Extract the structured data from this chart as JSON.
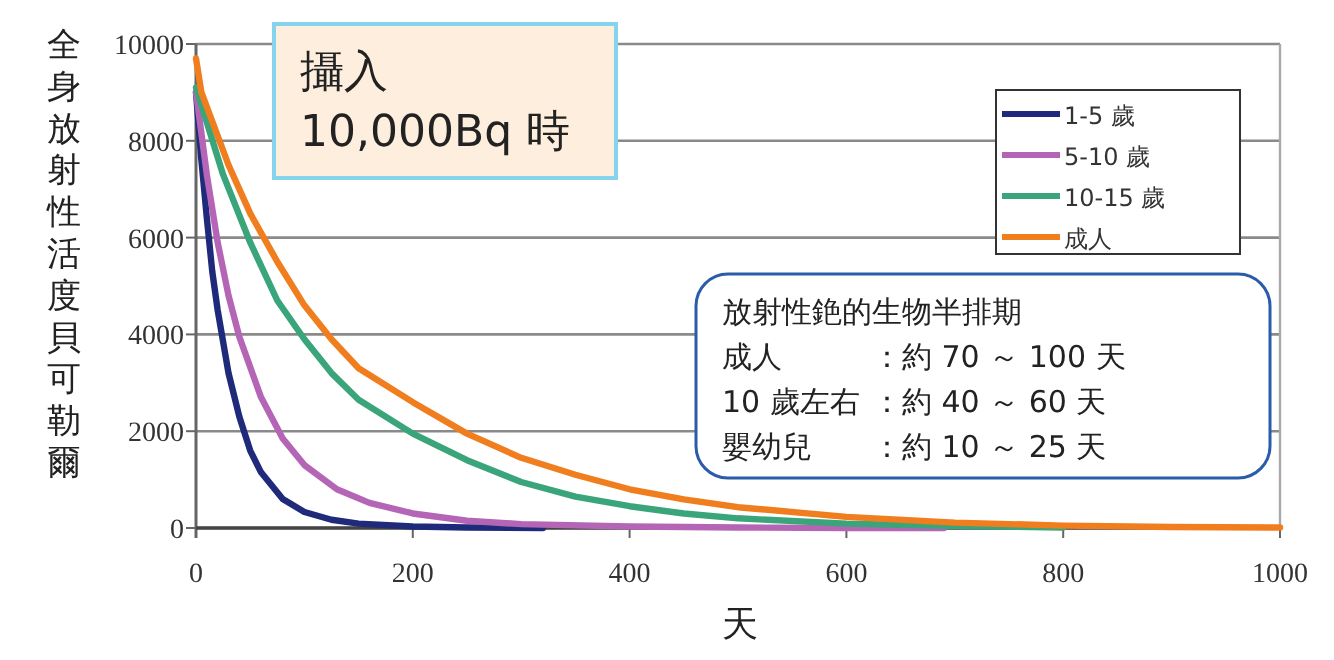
{
  "chart_data": {
    "type": "line",
    "xlabel": "天",
    "ylabel": "全身放射性活度貝可勒爾",
    "xlim": [
      0,
      1000
    ],
    "ylim": [
      0,
      10000
    ],
    "xticks": [
      0,
      200,
      400,
      600,
      800,
      1000
    ],
    "yticks": [
      0,
      2000,
      4000,
      6000,
      8000,
      10000
    ],
    "grid": "y",
    "legend": "top right",
    "marker": "none",
    "line_style": "solid",
    "annotations": [
      "攝入\n10,000Bq 時",
      "放射性銫的生物半排期",
      "成人",
      "：約 70 ～ 100 天",
      "10 歲左右",
      "：約 40 ～ 60 天",
      "嬰幼兒",
      "：約 10 ～ 25 天"
    ],
    "series": [
      {
        "name": "1-5 歲",
        "color": "#1f2a7a",
        "x": [
          0,
          5,
          10,
          15,
          20,
          30,
          40,
          50,
          60,
          80,
          100,
          125,
          150,
          200,
          250,
          320
        ],
        "values": [
          9000,
          7600,
          6400,
          5300,
          4500,
          3200,
          2300,
          1600,
          1150,
          600,
          330,
          170,
          90,
          30,
          10,
          0
        ]
      },
      {
        "name": "5-10 歲",
        "color": "#b565b5",
        "x": [
          0,
          10,
          20,
          30,
          40,
          60,
          80,
          100,
          130,
          160,
          200,
          250,
          300,
          400,
          500,
          600,
          690
        ],
        "values": [
          9000,
          7300,
          5900,
          4800,
          3950,
          2700,
          1850,
          1300,
          800,
          520,
          300,
          150,
          80,
          30,
          10,
          0,
          0
        ]
      },
      {
        "name": "10-15 歲",
        "color": "#3aa57a",
        "x": [
          0,
          25,
          50,
          75,
          100,
          125,
          150,
          200,
          250,
          300,
          350,
          400,
          450,
          500,
          600,
          700,
          800
        ],
        "values": [
          9100,
          7300,
          5900,
          4700,
          3900,
          3200,
          2650,
          1950,
          1400,
          950,
          650,
          450,
          300,
          200,
          90,
          40,
          10
        ]
      },
      {
        "name": "成人",
        "color": "#f07d1e",
        "x": [
          0,
          5,
          15,
          30,
          50,
          75,
          100,
          125,
          150,
          200,
          250,
          300,
          350,
          400,
          450,
          500,
          600,
          700,
          800,
          900,
          1000
        ],
        "values": [
          9700,
          9000,
          8400,
          7500,
          6500,
          5500,
          4600,
          3900,
          3300,
          2600,
          1950,
          1450,
          1100,
          800,
          590,
          430,
          230,
          110,
          50,
          20,
          10
        ]
      }
    ]
  }
}
